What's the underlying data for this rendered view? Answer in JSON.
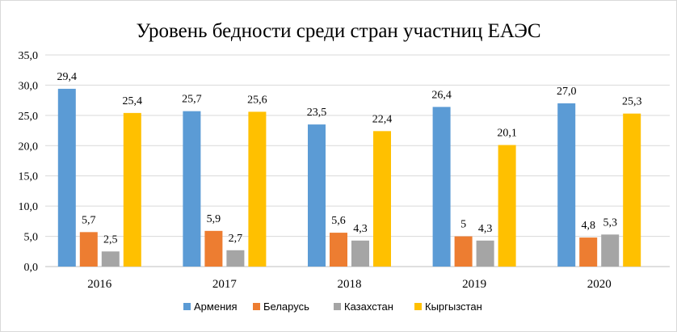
{
  "chart_data": {
    "type": "bar",
    "title": "Уровень бедности среди стран участниц ЕАЭС",
    "xlabel": "",
    "ylabel": "",
    "ylim": [
      0,
      35
    ],
    "yticks": [
      0,
      5,
      10,
      15,
      20,
      25,
      30,
      35
    ],
    "ytick_labels": [
      "0,0",
      "5,0",
      "10,0",
      "15,0",
      "20,0",
      "25,0",
      "30,0",
      "35,0"
    ],
    "grid": true,
    "legend_position": "bottom",
    "categories": [
      "2016",
      "2017",
      "2018",
      "2019",
      "2020"
    ],
    "series": [
      {
        "name": "Армения",
        "color": "#5b9bd5",
        "values": [
          29.4,
          25.7,
          23.5,
          26.4,
          27.0
        ],
        "labels": [
          "29,4",
          "25,7",
          "23,5",
          "26,4",
          "27,0"
        ]
      },
      {
        "name": "Беларусь",
        "color": "#ed7d31",
        "values": [
          5.7,
          5.9,
          5.6,
          5.0,
          4.8
        ],
        "labels": [
          "5,7",
          "5,9",
          "5,6",
          "5",
          "4,8"
        ]
      },
      {
        "name": "Казахстан",
        "color": "#a5a5a5",
        "values": [
          2.5,
          2.7,
          4.3,
          4.3,
          5.3
        ],
        "labels": [
          "2,5",
          "2,7",
          "4,3",
          "4,3",
          "5,3"
        ]
      },
      {
        "name": "Кыргызстан",
        "color": "#ffc000",
        "values": [
          25.4,
          25.6,
          22.4,
          20.1,
          25.3
        ],
        "labels": [
          "25,4",
          "25,6",
          "22,4",
          "20,1",
          "25,3"
        ]
      }
    ]
  }
}
